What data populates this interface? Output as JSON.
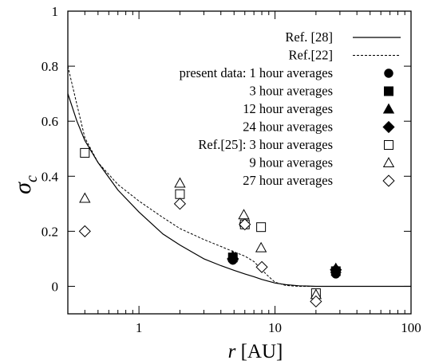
{
  "chart_data": {
    "type": "scatter",
    "xscale": "log",
    "xlim": [
      0.3,
      100
    ],
    "ylim": [
      -0.1,
      1.0
    ],
    "grid": false,
    "legend_placement": "top-right",
    "xticks": [
      {
        "value": 1,
        "label": "1"
      },
      {
        "value": 10,
        "label": "10"
      },
      {
        "value": 100,
        "label": "100"
      }
    ],
    "yticks": [
      {
        "value": 0,
        "label": "0"
      },
      {
        "value": 0.2,
        "label": "0.2"
      },
      {
        "value": 0.4,
        "label": "0.4"
      },
      {
        "value": 0.6,
        "label": "0.6"
      },
      {
        "value": 0.8,
        "label": "0.8"
      },
      {
        "value": 1.0,
        "label": "1"
      }
    ],
    "xlabel": {
      "var": "r",
      "unit": " [AU]"
    },
    "ylabel": {
      "var": "σ",
      "sub": "c"
    },
    "series": [
      {
        "name": "Ref. [28]",
        "kind": "line",
        "style": "solid",
        "x": [
          0.3,
          0.35,
          0.4,
          0.5,
          0.7,
          1,
          1.5,
          2,
          3,
          4,
          5,
          6,
          7,
          8,
          10,
          12,
          15,
          20,
          30,
          50,
          100
        ],
        "y": [
          0.7,
          0.6,
          0.53,
          0.45,
          0.35,
          0.27,
          0.19,
          0.15,
          0.1,
          0.075,
          0.058,
          0.045,
          0.035,
          0.025,
          0.012,
          0.006,
          0.002,
          0.0,
          0.0,
          0.0,
          0.0
        ]
      },
      {
        "name": "Ref.[22]",
        "kind": "line",
        "style": "dashed",
        "x": [
          0.3,
          0.35,
          0.4,
          0.5,
          0.7,
          1,
          1.5,
          2,
          3,
          4,
          5,
          6,
          7,
          8,
          9,
          10,
          12,
          15,
          20,
          30,
          50,
          100
        ],
        "y": [
          0.8,
          0.66,
          0.54,
          0.45,
          0.37,
          0.31,
          0.25,
          0.21,
          0.17,
          0.145,
          0.125,
          0.11,
          0.09,
          0.06,
          0.035,
          0.015,
          0.003,
          0.0,
          0.0,
          0.0,
          0.0,
          0.0
        ]
      },
      {
        "name": "present data: 1 hour averages",
        "kind": "marker",
        "marker": "circle-filled",
        "x": [
          4.9,
          5.9,
          28
        ],
        "y": [
          0.095,
          0.225,
          0.045
        ]
      },
      {
        "name": "3 hour averages",
        "kind": "marker",
        "marker": "square-filled",
        "x": [
          4.9,
          28
        ],
        "y": [
          0.105,
          0.055
        ]
      },
      {
        "name": "12 hour averages",
        "kind": "marker",
        "marker": "triangle-filled",
        "x": [
          4.9,
          28
        ],
        "y": [
          0.11,
          0.065
        ]
      },
      {
        "name": "24 hour averages",
        "kind": "marker",
        "marker": "diamond-filled",
        "x": [
          4.9,
          28
        ],
        "y": [
          0.1,
          0.06
        ]
      },
      {
        "name": "Ref.[25]: 3 hour averages",
        "kind": "marker",
        "marker": "square-open",
        "x": [
          0.4,
          2.0,
          6.0,
          7.9,
          20
        ],
        "y": [
          0.485,
          0.335,
          0.225,
          0.215,
          -0.025
        ]
      },
      {
        "name": "9 hour averages",
        "kind": "marker",
        "marker": "triangle-open",
        "x": [
          0.4,
          2.0,
          5.9,
          7.9,
          20
        ],
        "y": [
          0.32,
          0.375,
          0.26,
          0.14,
          -0.03
        ]
      },
      {
        "name": "27 hour averages",
        "kind": "marker",
        "marker": "diamond-open",
        "x": [
          0.4,
          2.0,
          6.0,
          8.0,
          20
        ],
        "y": [
          0.2,
          0.3,
          0.225,
          0.07,
          -0.055
        ]
      }
    ]
  }
}
